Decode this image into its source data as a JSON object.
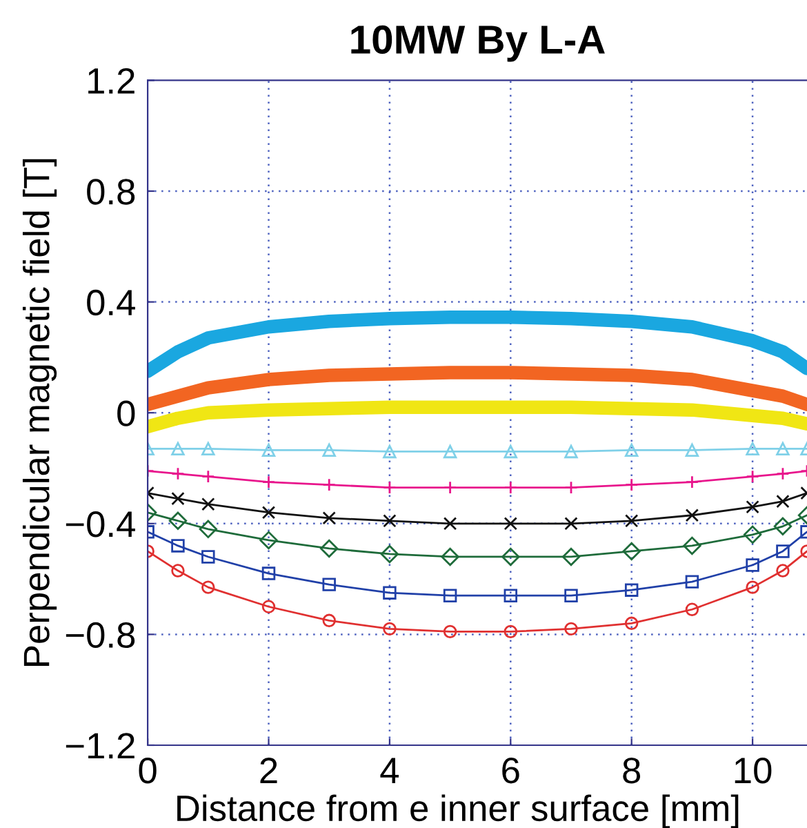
{
  "chart_data": {
    "type": "line",
    "title": "10MW By L-A",
    "xlabel": "Distance from e inner surface [mm]",
    "ylabel": "Perpendicular magnetic field [T]",
    "x": [
      0,
      0.5,
      1,
      2,
      3,
      4,
      5,
      6,
      7,
      8,
      9,
      10,
      10.5,
      10.9
    ],
    "xlim": [
      0,
      10.9
    ],
    "xticks": [
      0,
      2,
      4,
      6,
      8,
      10
    ],
    "ylim": [
      -1.2,
      1.2
    ],
    "yticks": [
      {
        "value": -1.2,
        "label": "−1.2"
      },
      {
        "value": -0.8,
        "label": "−0.8"
      },
      {
        "value": -0.4,
        "label": "−0.4"
      },
      0,
      0.4,
      0.8,
      1.2
    ],
    "grid": true,
    "legend": false,
    "line_style": "solid",
    "series": [
      {
        "color": "#1aa7e0",
        "marker": "none",
        "values": [
          0.15,
          0.22,
          0.27,
          0.31,
          0.33,
          0.34,
          0.345,
          0.345,
          0.34,
          0.33,
          0.31,
          0.26,
          0.22,
          0.16
        ]
      },
      {
        "color": "#f26522",
        "marker": "none",
        "values": [
          0.03,
          0.06,
          0.09,
          0.12,
          0.135,
          0.14,
          0.145,
          0.145,
          0.14,
          0.135,
          0.12,
          0.08,
          0.06,
          0.03
        ]
      },
      {
        "color": "#f0e614",
        "marker": "none",
        "values": [
          -0.05,
          -0.02,
          0.0,
          0.01,
          0.015,
          0.02,
          0.02,
          0.02,
          0.02,
          0.015,
          0.01,
          -0.01,
          -0.02,
          -0.04
        ]
      },
      {
        "color": "#7fd0e8",
        "marker": "triangle",
        "values": [
          -0.13,
          -0.13,
          -0.13,
          -0.135,
          -0.135,
          -0.14,
          -0.14,
          -0.14,
          -0.14,
          -0.135,
          -0.135,
          -0.13,
          -0.13,
          -0.13
        ]
      },
      {
        "color": "#e8158c",
        "marker": "cross",
        "values": [
          -0.21,
          -0.22,
          -0.23,
          -0.25,
          -0.26,
          -0.27,
          -0.27,
          -0.27,
          -0.27,
          -0.26,
          -0.25,
          -0.23,
          -0.22,
          -0.21
        ]
      },
      {
        "color": "#111111",
        "marker": "x",
        "values": [
          -0.29,
          -0.31,
          -0.33,
          -0.36,
          -0.38,
          -0.39,
          -0.4,
          -0.4,
          -0.4,
          -0.39,
          -0.37,
          -0.34,
          -0.32,
          -0.29
        ]
      },
      {
        "color": "#1e6b3a",
        "marker": "diamond",
        "values": [
          -0.36,
          -0.39,
          -0.42,
          -0.46,
          -0.49,
          -0.51,
          -0.52,
          -0.52,
          -0.52,
          -0.5,
          -0.48,
          -0.44,
          -0.41,
          -0.37
        ]
      },
      {
        "color": "#2040a8",
        "marker": "square",
        "values": [
          -0.43,
          -0.48,
          -0.52,
          -0.58,
          -0.62,
          -0.65,
          -0.66,
          -0.66,
          -0.66,
          -0.64,
          -0.61,
          -0.55,
          -0.5,
          -0.43
        ]
      },
      {
        "color": "#e03030",
        "marker": "circle",
        "values": [
          -0.5,
          -0.57,
          -0.63,
          -0.7,
          -0.75,
          -0.78,
          -0.79,
          -0.79,
          -0.78,
          -0.76,
          -0.71,
          -0.63,
          -0.57,
          -0.5
        ]
      }
    ]
  }
}
